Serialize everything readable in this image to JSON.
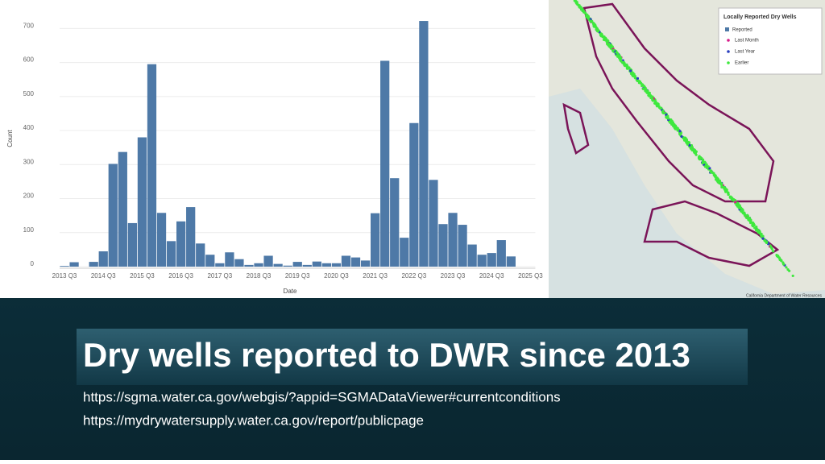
{
  "chart_data": {
    "type": "bar",
    "x_label": "Date",
    "y_label": "Count",
    "color": "#4e79a7",
    "grid": true,
    "categories": [
      "2013 Q3",
      null,
      null,
      null,
      "2014 Q3",
      null,
      null,
      null,
      "2015 Q3",
      null,
      null,
      null,
      "2016 Q3",
      null,
      null,
      null,
      "2017 Q3",
      null,
      null,
      null,
      "2018 Q3",
      null,
      null,
      null,
      "2019 Q3",
      null,
      null,
      null,
      "2020 Q3",
      null,
      null,
      null,
      "2021 Q3",
      null,
      null,
      null,
      "2022 Q3",
      null,
      null,
      null,
      "2023 Q3",
      null,
      null,
      null,
      "2024 Q3",
      null,
      null,
      null,
      "2025 Q3"
    ],
    "values": [
      2,
      13,
      0,
      14,
      45,
      302,
      337,
      128,
      380,
      595,
      158,
      75,
      133,
      175,
      68,
      35,
      10,
      42,
      22,
      5,
      10,
      32,
      8,
      3,
      14,
      5,
      15,
      10,
      10,
      32,
      27,
      18,
      157,
      605,
      260,
      85,
      422,
      722,
      255,
      125,
      158,
      123,
      65,
      35,
      40,
      78,
      30,
      null,
      null
    ],
    "ylim": [
      0,
      760
    ],
    "yticks": [
      0,
      100,
      200,
      300,
      400,
      500,
      600,
      700
    ]
  },
  "map": {
    "legend_title": "Locally Reported Dry Wells",
    "legend_group": "Reported",
    "legend_items": [
      {
        "label": "Last Month",
        "color": "#d81b8a"
      },
      {
        "label": "Last Year",
        "color": "#2a3fbf"
      },
      {
        "label": "Earlier",
        "color": "#3ee83e"
      }
    ],
    "credit": "California Department of Water Resources"
  },
  "slide": {
    "title": "Dry wells reported to DWR since 2013",
    "links": [
      "https://sgma.water.ca.gov/webgis/?appid=SGMADataViewer#currentconditions",
      "https://mydrywatersupply.water.ca.gov/report/publicpage"
    ]
  }
}
